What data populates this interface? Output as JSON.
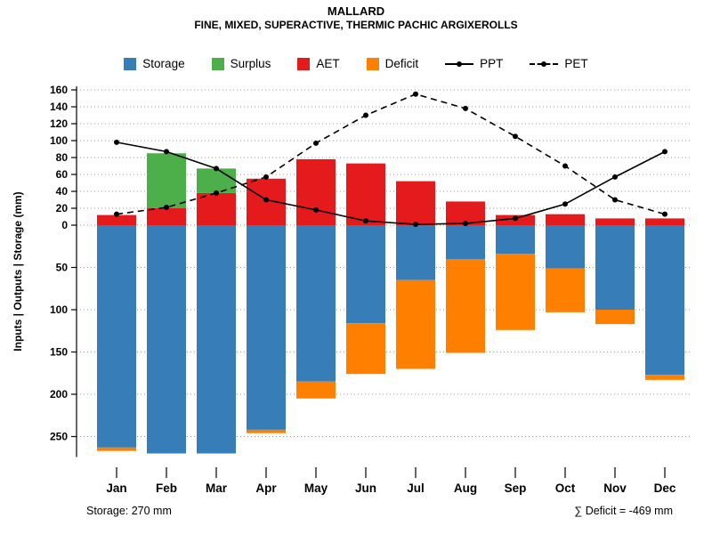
{
  "title": "MALLARD",
  "subtitle": "FINE, MIXED, SUPERACTIVE, THERMIC PACHIC ARGIXEROLLS",
  "footer": {
    "storage_note": "Storage: 270 mm",
    "deficit_note": "∑ Deficit = -469 mm"
  },
  "chart_data": {
    "type": "bar",
    "title": "MALLARD",
    "subtitle": "FINE, MIXED, SUPERACTIVE, THERMIC PACHIC ARGIXEROLLS",
    "ylabel": "Inputs | Outputs | Storage   (mm)",
    "categories": [
      "Jan",
      "Feb",
      "Mar",
      "Apr",
      "May",
      "Jun",
      "Jul",
      "Aug",
      "Sep",
      "Oct",
      "Nov",
      "Dec"
    ],
    "series": [
      {
        "name": "AET",
        "type": "bar",
        "direction": "up",
        "color": "#E41A1C",
        "values": [
          12,
          20,
          38,
          55,
          78,
          73,
          52,
          28,
          12,
          13,
          8,
          8
        ]
      },
      {
        "name": "Surplus",
        "type": "bar",
        "direction": "up",
        "color": "#4DAF4A",
        "values": [
          0,
          65,
          29,
          0,
          0,
          0,
          0,
          0,
          0,
          0,
          0,
          0
        ]
      },
      {
        "name": "Storage",
        "type": "bar",
        "direction": "down",
        "color": "#377EB8",
        "values": [
          263,
          270,
          270,
          242,
          185,
          116,
          65,
          40,
          34,
          51,
          100,
          177
        ]
      },
      {
        "name": "Deficit",
        "type": "bar",
        "direction": "down",
        "color": "#FF7F00",
        "values": [
          4,
          0,
          0,
          4,
          20,
          60,
          105,
          111,
          90,
          52,
          17,
          6
        ]
      },
      {
        "name": "PPT",
        "type": "line",
        "style": "solid",
        "color": "#000000",
        "values": [
          98,
          87,
          67,
          30,
          18,
          5,
          1,
          2,
          8,
          25,
          57,
          87
        ]
      },
      {
        "name": "PET",
        "type": "line",
        "style": "dashed",
        "color": "#000000",
        "values": [
          13,
          21,
          38,
          57,
          97,
          130,
          155,
          138,
          105,
          70,
          30,
          13
        ]
      }
    ],
    "y_axis": {
      "upper_ticks": [
        0,
        20,
        40,
        60,
        80,
        100,
        120,
        140,
        160
      ],
      "lower_ticks": [
        50,
        100,
        150,
        200,
        250
      ],
      "upper_max": 160,
      "lower_max": 270
    },
    "legend": [
      {
        "label": "Storage",
        "swatch": "square",
        "color": "#377EB8"
      },
      {
        "label": "Surplus",
        "swatch": "square",
        "color": "#4DAF4A"
      },
      {
        "label": "AET",
        "swatch": "square",
        "color": "#E41A1C"
      },
      {
        "label": "Deficit",
        "swatch": "square",
        "color": "#FF7F00"
      },
      {
        "label": "PPT",
        "swatch": "line-solid",
        "color": "#000000"
      },
      {
        "label": "PET",
        "swatch": "line-dashed",
        "color": "#000000"
      }
    ],
    "grid": true,
    "legend_position": "top"
  }
}
